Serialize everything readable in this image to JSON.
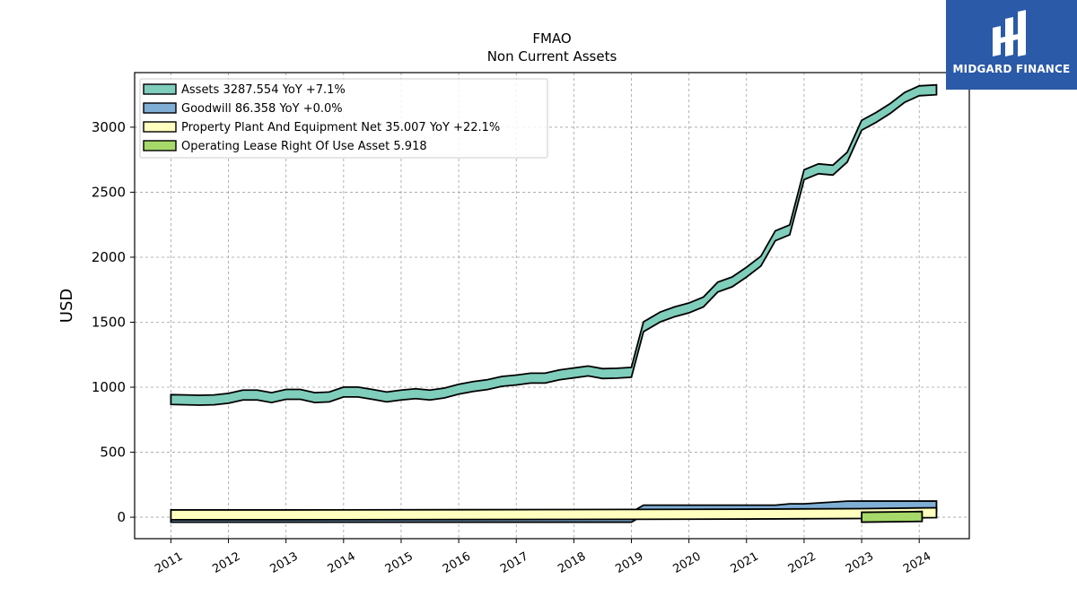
{
  "chart_data": {
    "type": "area",
    "title": "FMAO",
    "subtitle": "Non Current  Assets",
    "xlabel": "",
    "ylabel": "USD",
    "ylim": [
      -165,
      3420
    ],
    "xlim": [
      2010.37,
      2024.87
    ],
    "yticks": [
      0,
      500,
      1000,
      1500,
      2000,
      2500,
      3000
    ],
    "xticks": [
      "2011",
      "2012",
      "2013",
      "2014",
      "2015",
      "2016",
      "2017",
      "2018",
      "2019",
      "2020",
      "2021",
      "2022",
      "2023",
      "2024"
    ],
    "grid": true,
    "legend_position": "top-left",
    "series": [
      {
        "name": "Assets  3287.554 YoY +7.1%",
        "color": "#7fcdbb",
        "x": [
          2011.0,
          2011.25,
          2011.5,
          2011.75,
          2012.0,
          2012.25,
          2012.5,
          2012.75,
          2013.0,
          2013.25,
          2013.5,
          2013.75,
          2014.0,
          2014.25,
          2014.5,
          2014.75,
          2015.0,
          2015.25,
          2015.5,
          2015.75,
          2016.0,
          2016.25,
          2016.5,
          2016.75,
          2017.0,
          2017.25,
          2017.5,
          2017.75,
          2018.0,
          2018.25,
          2018.5,
          2018.75,
          2019.0,
          2019.21,
          2019.5,
          2019.75,
          2020.0,
          2020.25,
          2020.5,
          2020.75,
          2021.0,
          2021.25,
          2021.5,
          2021.75,
          2022.0,
          2022.25,
          2022.5,
          2022.75,
          2023.0,
          2023.25,
          2023.5,
          2023.75,
          2024.0,
          2024.3
        ],
        "values": [
          905,
          903,
          900,
          903,
          915,
          940,
          940,
          920,
          945,
          945,
          920,
          925,
          963,
          963,
          945,
          925,
          940,
          950,
          940,
          955,
          985,
          1005,
          1020,
          1045,
          1055,
          1070,
          1070,
          1095,
          1110,
          1125,
          1105,
          1108,
          1115,
          1465,
          1540,
          1580,
          1610,
          1655,
          1770,
          1810,
          1885,
          1970,
          2165,
          2210,
          2635,
          2680,
          2670,
          2770,
          3015,
          3075,
          3145,
          3230,
          3280,
          3287.554
        ]
      },
      {
        "name": "Goodwill  86.358 YoY +0.0%",
        "color": "#7faed4",
        "x": [
          2011.0,
          2019.0,
          2019.21,
          2021.5,
          2021.75,
          2022.0,
          2022.75,
          2023.0,
          2024.3
        ],
        "values": [
          0,
          0,
          55,
          55,
          65,
          65,
          86,
          86.358,
          86.358
        ]
      },
      {
        "name": "Property Plant And Equipment Net  35.007 YoY +22.1%",
        "color": "#ffffbf",
        "x": [
          2011.0,
          2013.0,
          2016.0,
          2019.0,
          2021.0,
          2023.0,
          2024.3
        ],
        "values": [
          18,
          18,
          20,
          22,
          24,
          28,
          35.007
        ]
      },
      {
        "name": "Operating Lease Right Of Use Asset  5.918",
        "color": "#a6d96a",
        "x": [
          2023.0,
          2024.05
        ],
        "values": [
          0,
          5.918
        ]
      }
    ]
  },
  "brand": {
    "name": "MIDGARD FINANCE",
    "color": "#2b5aa8"
  }
}
